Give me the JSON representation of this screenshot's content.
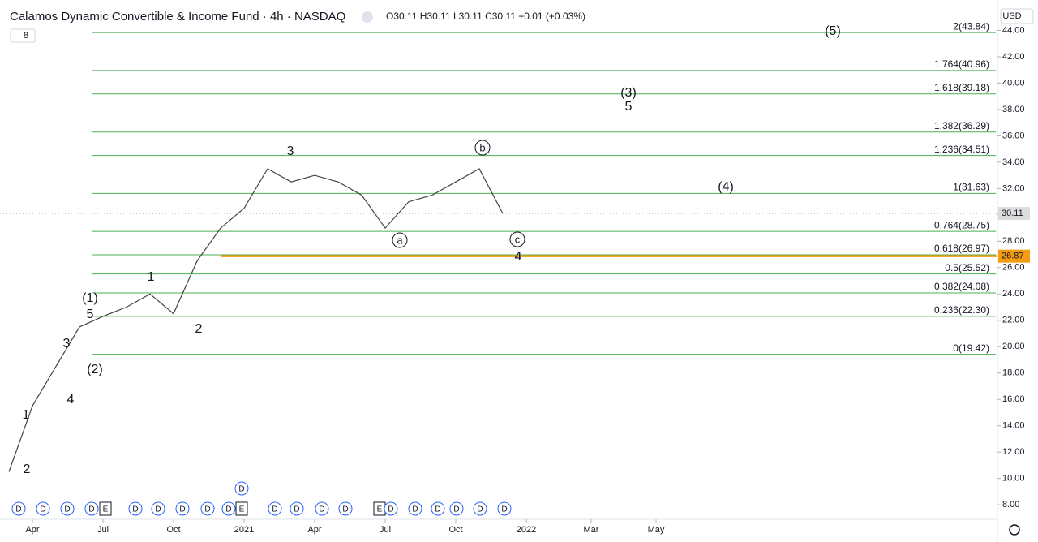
{
  "chart_data": {
    "type": "line",
    "title": "Calamos Dynamic Convertible & Income Fund · 4h · NASDAQ",
    "ohlc": "O30.11 H30.11 L30.11 C30.11 +0.01 (+0.03%)",
    "indicator_count": "8",
    "currency": "USD",
    "x": [
      "2020-03",
      "2020-04",
      "2020-05",
      "2020-06",
      "2020-07",
      "2020-08",
      "2020-09",
      "2020-10",
      "2020-11",
      "2020-12",
      "2021-01",
      "2021-02",
      "2021-03",
      "2021-04",
      "2021-05",
      "2021-06",
      "2021-07",
      "2021-08",
      "2021-09",
      "2021-10",
      "2021-11",
      "2021-12"
    ],
    "values": [
      10.5,
      15.5,
      18.5,
      21.5,
      22.3,
      23.0,
      24.0,
      22.5,
      26.5,
      29.0,
      30.5,
      33.5,
      32.5,
      33.0,
      32.5,
      31.5,
      29.0,
      31.0,
      31.5,
      32.5,
      33.5,
      30.11
    ],
    "value_labels": [
      null,
      null,
      null,
      null,
      null,
      null,
      null,
      null,
      null,
      null,
      null,
      null,
      null,
      null,
      null,
      null,
      null,
      null,
      null,
      null,
      null,
      "30.11"
    ],
    "color": "#444444",
    "ylim": [
      6.9,
      46
    ],
    "yticks": [
      {
        "value": 8,
        "label": "8.00"
      },
      {
        "value": 10,
        "label": "10.00"
      },
      {
        "value": 12,
        "label": "12.00"
      },
      {
        "value": 14,
        "label": "14.00"
      },
      {
        "value": 16,
        "label": "16.00"
      },
      {
        "value": 18,
        "label": "18.00"
      },
      {
        "value": 20,
        "label": "20.00"
      },
      {
        "value": 22,
        "label": "22.00"
      },
      {
        "value": 24,
        "label": "24.00"
      },
      {
        "value": 26,
        "label": "26.00"
      },
      {
        "value": 28,
        "label": "28.00"
      },
      {
        "value": 30,
        "label": "30.00"
      },
      {
        "value": 32,
        "label": "32.00"
      },
      {
        "value": 34,
        "label": "34.00"
      },
      {
        "value": 36,
        "label": "36.00"
      },
      {
        "value": 38,
        "label": "38.00"
      },
      {
        "value": 40,
        "label": "40.00"
      },
      {
        "value": 42,
        "label": "42.00"
      },
      {
        "value": 44,
        "label": "44.00"
      }
    ],
    "xticks": [
      {
        "value": "2020-04",
        "label": "Apr"
      },
      {
        "value": "2020-07",
        "label": "Jul"
      },
      {
        "value": "2020-10",
        "label": "Oct"
      },
      {
        "value": "2021-01",
        "label": "2021"
      },
      {
        "value": "2021-04",
        "label": "Apr"
      },
      {
        "value": "2021-07",
        "label": "Jul"
      },
      {
        "value": "2021-10",
        "label": "Oct"
      },
      {
        "value": "2022-01",
        "label": "2022"
      },
      {
        "value": "2022-03",
        "label": "Mar"
      },
      {
        "value": "2022-05",
        "label": "May"
      }
    ],
    "fib_levels": [
      {
        "value": 43.84,
        "label": "2(43.84)"
      },
      {
        "value": 40.96,
        "label": "1.764(40.96)"
      },
      {
        "value": 39.18,
        "label": "1.618(39.18)"
      },
      {
        "value": 36.29,
        "label": "1.382(36.29)"
      },
      {
        "value": 34.51,
        "label": "1.236(34.51)"
      },
      {
        "value": 31.63,
        "label": "1(31.63)"
      },
      {
        "value": 28.75,
        "label": "0.764(28.75)"
      },
      {
        "value": 26.97,
        "label": "0.618(26.97)"
      },
      {
        "value": 25.52,
        "label": "0.5(25.52)"
      },
      {
        "value": 24.08,
        "label": "0.382(24.08)"
      },
      {
        "value": 22.3,
        "label": "0.236(22.30)"
      },
      {
        "value": 19.42,
        "label": "0(19.42)"
      }
    ],
    "fib_color": "#4caf50",
    "horizontal_line": {
      "value": 26.87,
      "label": "26.87",
      "color": "#f39c12"
    },
    "annotations": [
      {
        "text": "(5)"
      },
      {
        "text": "(3)"
      },
      {
        "text": "5"
      },
      {
        "text": "(4)"
      },
      {
        "text": "3"
      },
      {
        "text": "b",
        "circled": true
      },
      {
        "text": "a",
        "circled": true
      },
      {
        "text": "c",
        "circled": true
      },
      {
        "text": "4"
      },
      {
        "text": "1"
      },
      {
        "text": "(1)"
      },
      {
        "text": "5"
      },
      {
        "text": "3"
      },
      {
        "text": "2"
      },
      {
        "text": "(2)"
      },
      {
        "text": "4"
      },
      {
        "text": "1"
      },
      {
        "text": "2"
      }
    ],
    "events": [
      "D",
      "D",
      "D",
      "D",
      "E",
      "D",
      "D",
      "D",
      "D",
      "D",
      "E",
      "D",
      "D",
      "D",
      "D",
      "E",
      "D",
      "D",
      "D",
      "D",
      "D",
      "D",
      "D"
    ]
  }
}
